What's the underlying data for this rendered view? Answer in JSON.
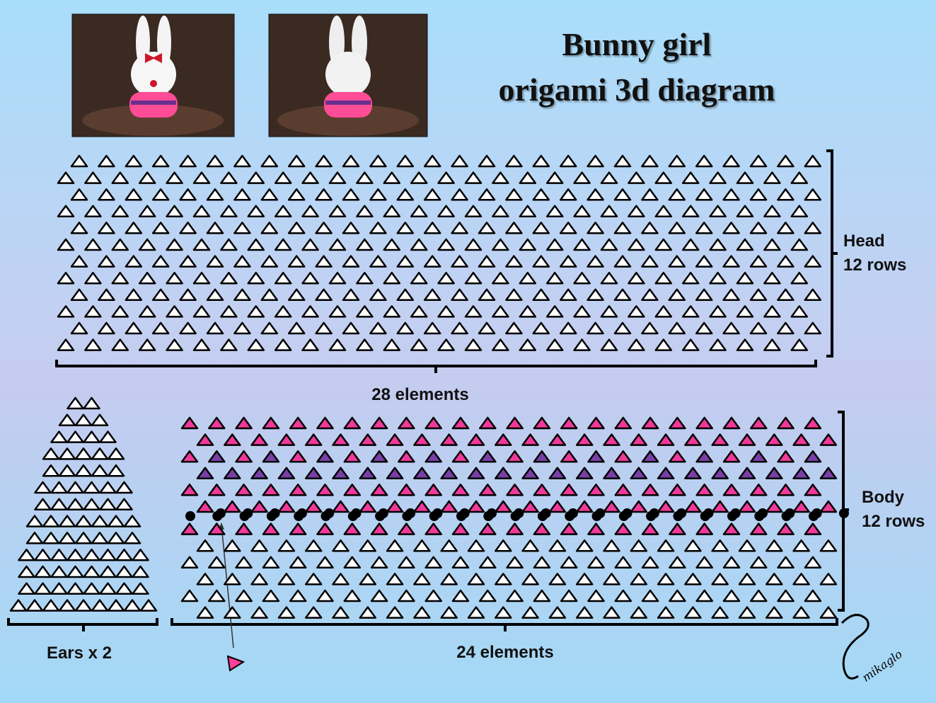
{
  "title": {
    "line1": "Bunny girl",
    "line2": "origami 3d diagram"
  },
  "head": {
    "label": "Head",
    "rows_label": "12 rows",
    "count_label": "28 elements"
  },
  "body": {
    "label": "Body",
    "rows_label": "12 rows",
    "count_label": "24 elements"
  },
  "ears": {
    "label": "Ears x 2"
  },
  "signature": "mikaglo"
}
